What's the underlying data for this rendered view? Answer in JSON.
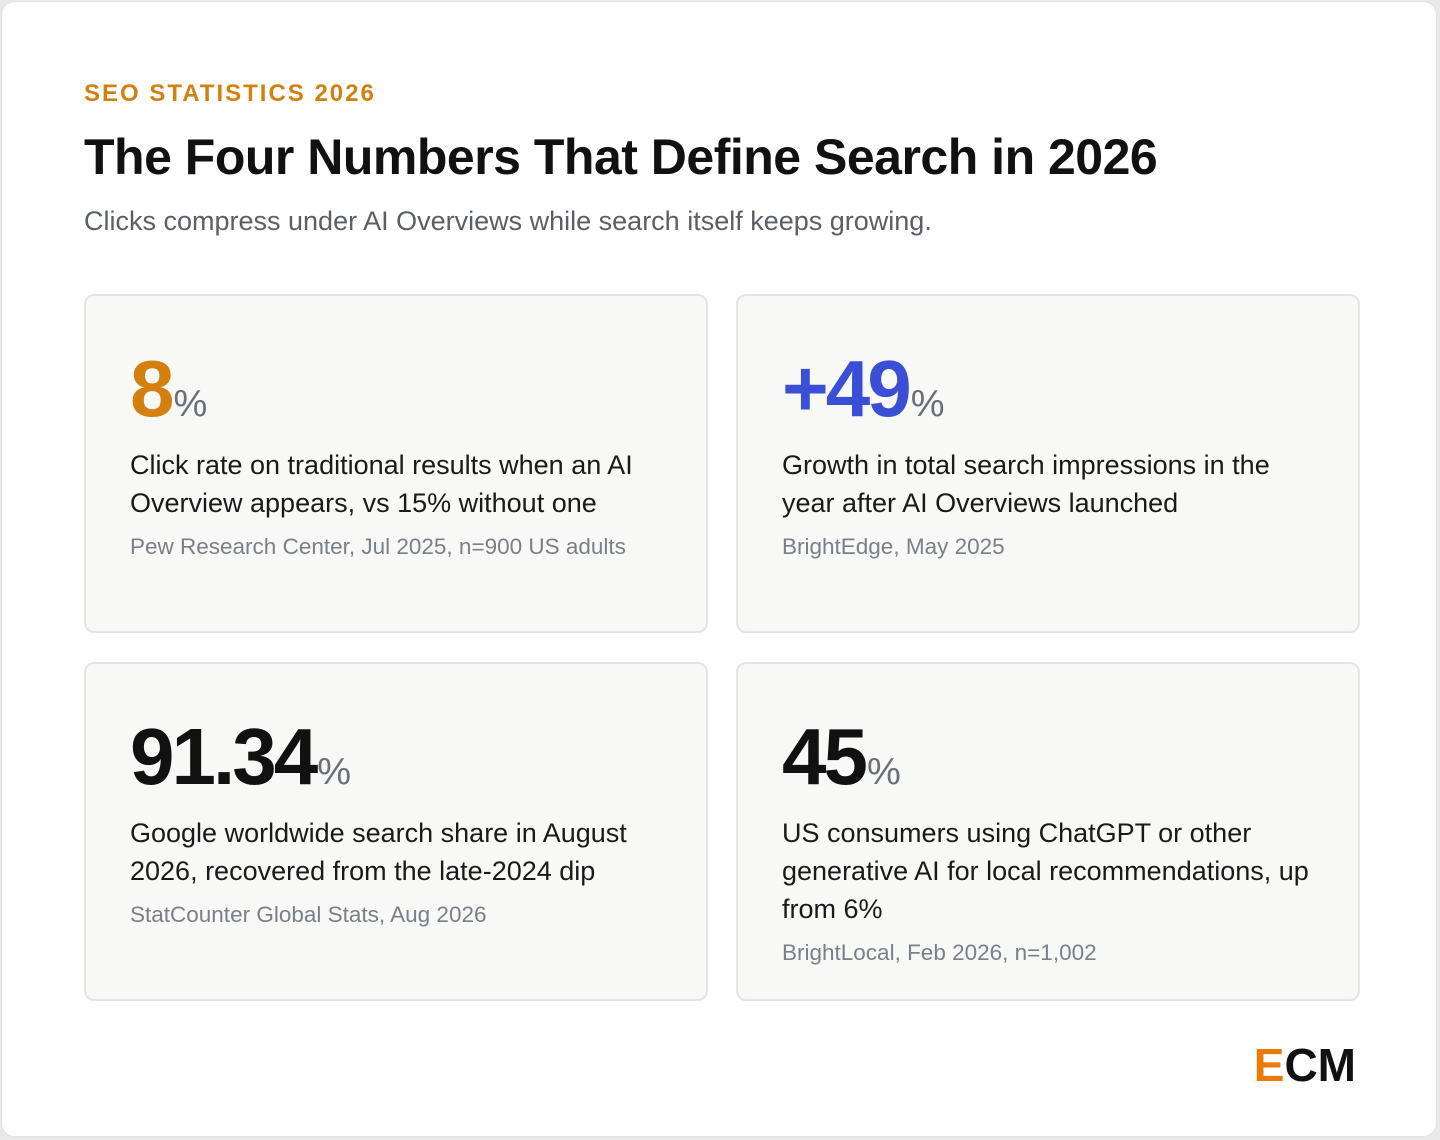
{
  "header": {
    "eyebrow": "SEO STATISTICS 2026",
    "title": "The Four Numbers That Define Search in 2026",
    "subtitle": "Clicks compress under AI Overviews while search itself keeps growing."
  },
  "stats": [
    {
      "value": "8",
      "unit": "%",
      "color": "#d3800f",
      "description": "Click rate on traditional results when an AI Overview appears, vs 15% without one",
      "source": "Pew Research Center, Jul 2025, n=900 US adults"
    },
    {
      "value": "+49",
      "unit": "%",
      "color": "#3a4fd6",
      "description": "Growth in total search impressions in the year after AI Overviews launched",
      "source": "BrightEdge, May 2025"
    },
    {
      "value": "91.34",
      "unit": "%",
      "color": "#111111",
      "description": "Google worldwide search share in August 2026, recovered from the late-2024 dip",
      "source": "StatCounter Global Stats, Aug 2026"
    },
    {
      "value": "45",
      "unit": "%",
      "color": "#111111",
      "description": "US consumers using ChatGPT or other generative AI for local recommendations, up from 6%",
      "source": "BrightLocal, Feb 2026, n=1,002"
    }
  ],
  "logo": {
    "first_letter": "E",
    "rest": "CM",
    "accent_color": "#ec7a0a"
  }
}
